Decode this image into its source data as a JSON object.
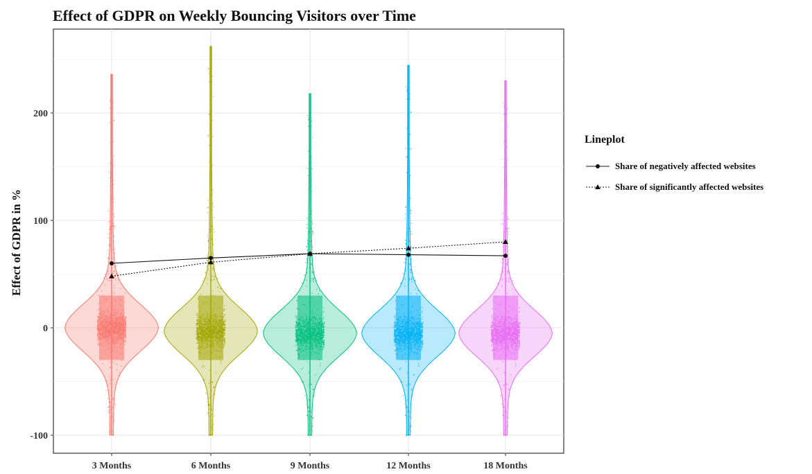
{
  "chart_data": {
    "type": "violin",
    "title": "Effect of GDPR on Weekly Bouncing Visitors over Time",
    "xlabel": "",
    "ylabel": "Effect of GDPR in %",
    "categories": [
      "3 Months",
      "6 Months",
      "9 Months",
      "12 Months",
      "18 Months"
    ],
    "ylim": [
      -105,
      255
    ],
    "yticks": [
      -100,
      0,
      100,
      200
    ],
    "grid": true,
    "colors": [
      "#f8766d",
      "#a3a500",
      "#00bf7d",
      "#00b0f6",
      "#e76bf3"
    ],
    "violins": [
      {
        "category": "3 Months",
        "min": -100,
        "max": 236,
        "center": 0
      },
      {
        "category": "6 Months",
        "min": -100,
        "max": 262,
        "center": -3
      },
      {
        "category": "9 Months",
        "min": -100,
        "max": 218,
        "center": -5
      },
      {
        "category": "12 Months",
        "min": -100,
        "max": 245,
        "center": -5
      },
      {
        "category": "18 Months",
        "min": -100,
        "max": 230,
        "center": -5
      }
    ],
    "legend": {
      "title": "Lineplot",
      "placement": "right"
    },
    "series": [
      {
        "name": "Share of negatively affected websites",
        "marker": "circle",
        "line": "solid",
        "values": [
          60,
          65,
          69,
          68,
          67
        ]
      },
      {
        "name": "Share of significantly affected websites",
        "marker": "triangle",
        "line": "dotted",
        "values": [
          48,
          61,
          69,
          74,
          80
        ]
      }
    ]
  }
}
